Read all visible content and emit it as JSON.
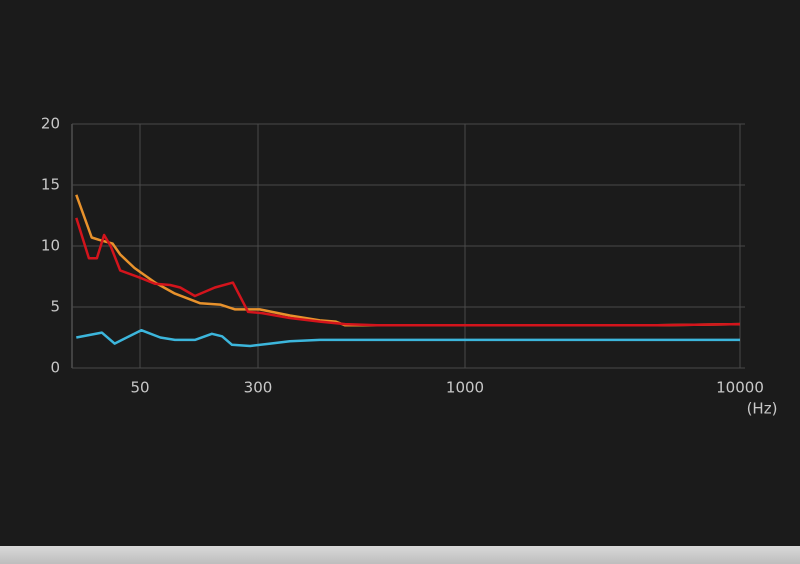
{
  "chart_data": {
    "type": "line",
    "x_label": "(Hz)",
    "xlim": [
      18,
      10500
    ],
    "xticks": [
      50,
      300,
      1000,
      10000
    ],
    "xscale": "log",
    "ylim": [
      0,
      20
    ],
    "yticks": [
      0,
      5,
      10,
      15,
      20
    ],
    "grid": true,
    "series": [
      {
        "color": "#e8922c",
        "x": [
          19,
          24,
          27,
          33,
          37,
          46,
          63,
          85,
          125,
          169,
          212,
          303,
          361,
          430,
          472,
          498,
          600,
          5000,
          10000
        ],
        "values": [
          14.2,
          10.7,
          10.5,
          10.2,
          9.3,
          8.2,
          7.0,
          6.1,
          5.3,
          5.2,
          4.8,
          4.8,
          4.3,
          3.9,
          3.8,
          3.5,
          3.5,
          3.5,
          3.6
        ]
      },
      {
        "color": "#d3141c",
        "x": [
          19,
          23,
          26,
          29,
          32,
          37,
          50,
          63,
          79,
          92,
          115,
          156,
          205,
          258,
          307,
          361,
          430,
          498,
          600,
          5000,
          10000
        ],
        "values": [
          12.3,
          9.0,
          9.0,
          10.9,
          10.0,
          8.0,
          7.4,
          6.9,
          6.8,
          6.6,
          5.9,
          6.6,
          7.0,
          4.6,
          4.5,
          4.1,
          3.8,
          3.6,
          3.5,
          3.5,
          3.6
        ]
      },
      {
        "color": "#3cb6dc",
        "x": [
          19,
          28,
          34,
          51,
          68,
          85,
          115,
          149,
          174,
          202,
          266,
          322,
          361,
          430,
          498,
          10000
        ],
        "values": [
          2.5,
          2.9,
          2.0,
          3.1,
          2.5,
          2.3,
          2.3,
          2.8,
          2.6,
          1.9,
          1.8,
          2.0,
          2.2,
          2.3,
          2.3,
          2.3
        ]
      }
    ]
  }
}
